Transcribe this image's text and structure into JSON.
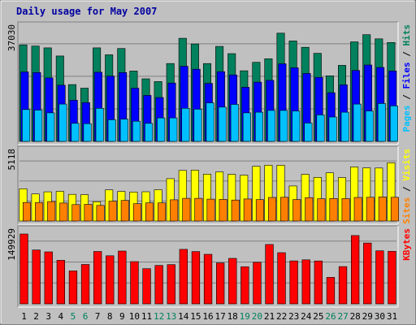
{
  "chart_data": [
    {
      "type": "bar",
      "title": "Daily usage for May 2007",
      "categories": [
        "1",
        "2",
        "3",
        "4",
        "5",
        "6",
        "7",
        "8",
        "9",
        "10",
        "11",
        "12",
        "13",
        "14",
        "15",
        "16",
        "17",
        "18",
        "19",
        "20",
        "21",
        "22",
        "23",
        "24",
        "25",
        "26",
        "27",
        "28",
        "29",
        "30",
        "31"
      ],
      "weekend_days": [
        "5",
        "6",
        "12",
        "13",
        "19",
        "20",
        "26",
        "27"
      ],
      "ymax_label": "37030",
      "ylim": [
        0,
        37030
      ],
      "legend": [
        "Pages",
        "Files",
        "Hits"
      ],
      "series": [
        {
          "name": "Hits",
          "color": "#00805c",
          "values": [
            32100,
            31700,
            31100,
            28400,
            18900,
            17700,
            31100,
            28800,
            30900,
            23400,
            20800,
            19900,
            25900,
            34300,
            32400,
            25900,
            31600,
            29200,
            23500,
            26300,
            27500,
            36000,
            33400,
            31300,
            29300,
            21800,
            25300,
            33100,
            35500,
            34100,
            32900
          ]
        },
        {
          "name": "Files",
          "color": "#0000ff",
          "values": [
            23100,
            22900,
            21100,
            18700,
            13700,
            12900,
            23000,
            21700,
            22900,
            17700,
            15300,
            14600,
            19400,
            25000,
            24000,
            19300,
            23200,
            22100,
            18000,
            19700,
            20300,
            25800,
            24500,
            22600,
            21300,
            16200,
            18800,
            23600,
            25400,
            24600,
            23400
          ]
        },
        {
          "name": "Pages",
          "color": "#00c0ff",
          "values": [
            10600,
            10400,
            9500,
            12400,
            6000,
            5900,
            11000,
            7200,
            7400,
            6700,
            6000,
            7800,
            7800,
            11000,
            10700,
            12800,
            11400,
            12300,
            9500,
            9700,
            10300,
            10300,
            10100,
            6100,
            8800,
            8100,
            9700,
            12400,
            10100,
            12600,
            11800
          ]
        }
      ]
    },
    {
      "type": "bar",
      "ymax_label": "5118",
      "ylim": [
        0,
        5118
      ],
      "legend": [
        "Sites",
        "Visits"
      ],
      "series": [
        {
          "name": "Visits",
          "color": "#ffff00",
          "values": [
            2480,
            2080,
            2240,
            2280,
            2050,
            2020,
            1480,
            2390,
            2270,
            2230,
            2250,
            2400,
            3250,
            3880,
            3910,
            3600,
            3770,
            3580,
            3520,
            4200,
            4280,
            4280,
            2690,
            3580,
            3350,
            3700,
            3330,
            4150,
            4080,
            4070,
            4470
          ]
        },
        {
          "name": "Sites",
          "color": "#ff8000",
          "values": [
            1420,
            1410,
            1490,
            1380,
            1260,
            1280,
            1200,
            1520,
            1580,
            1330,
            1390,
            1390,
            1630,
            1740,
            1740,
            1680,
            1660,
            1610,
            1690,
            1640,
            1810,
            1820,
            1650,
            1800,
            1710,
            1730,
            1720,
            1810,
            1820,
            1850,
            1820
          ]
        }
      ]
    },
    {
      "type": "bar",
      "ymax_label": "149929",
      "ylim": [
        0,
        149929
      ],
      "legend": [
        "KBytes"
      ],
      "series": [
        {
          "name": "KBytes",
          "color": "#ff0000",
          "values": [
            149929,
            115600,
            111500,
            93400,
            70700,
            84600,
            112500,
            103200,
            113300,
            90700,
            75500,
            82500,
            84200,
            117000,
            112200,
            106400,
            87900,
            97600,
            79600,
            89200,
            127500,
            109800,
            92200,
            94500,
            92000,
            56800,
            80100,
            146600,
            130600,
            113900,
            112800
          ]
        }
      ]
    }
  ]
}
